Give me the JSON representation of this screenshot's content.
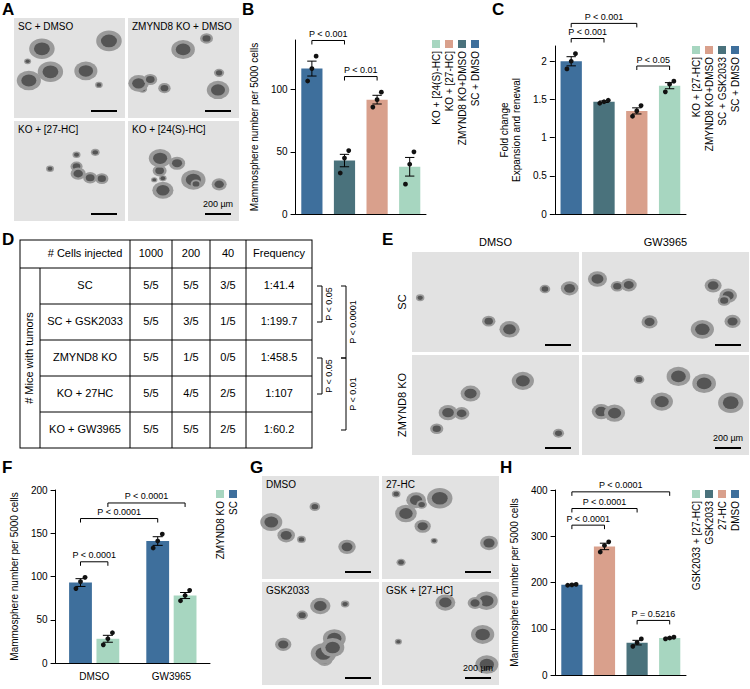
{
  "chart_data": [
    {
      "panel": "B",
      "type": "bar",
      "y_label": "Mammosphere number per 5000 cells",
      "categories": [
        "SC + DMSO",
        "ZMYND8 KO+DMSO",
        "KO + [27-HC]",
        "KO + [24(S)-HC]"
      ],
      "values": [
        117,
        43,
        92,
        38
      ],
      "colors": [
        "#3e6f9c",
        "#4a727c",
        "#d9a08c",
        "#a7d6c0"
      ],
      "errors": [
        6,
        5,
        3.5,
        7.5
      ],
      "points": [
        [
          107,
          117,
          127
        ],
        [
          33,
          45,
          51
        ],
        [
          86,
          92,
          98
        ],
        [
          24,
          40,
          50
        ]
      ],
      "ylim": [
        0,
        140
      ],
      "yticks": [
        0,
        50,
        100
      ],
      "grid": false,
      "tick_labels": "y",
      "legend": "right",
      "comparisons": [
        {
          "from": 0,
          "to": 1,
          "label": "P < 0.001"
        },
        {
          "from": 1,
          "to": 2,
          "label": "P < 0.01"
        }
      ]
    },
    {
      "panel": "C",
      "type": "bar",
      "y_label": "Fold change\nExpansion and renewal",
      "categories": [
        "SC + DMSO",
        "SC + GSK2033",
        "ZMYND8 KO+DMSO",
        "KO + [27-HC]"
      ],
      "values": [
        2.0,
        1.47,
        1.35,
        1.68
      ],
      "colors": [
        "#3e6f9c",
        "#4a727c",
        "#d9a08c",
        "#a7d6c0"
      ],
      "errors": [
        0.06,
        0.01,
        0.04,
        0.04
      ],
      "points": [
        [
          1.9,
          2.0,
          2.1
        ],
        [
          1.45,
          1.47,
          1.49
        ],
        [
          1.28,
          1.35,
          1.42
        ],
        [
          1.6,
          1.7,
          1.74
        ]
      ],
      "ylim": [
        0,
        2.2
      ],
      "yticks": [
        0,
        0.5,
        1,
        1.5,
        2
      ],
      "grid": false,
      "tick_labels": "y",
      "legend": "right",
      "comparisons": [
        {
          "from": 0,
          "to": 1,
          "label": "P < 0.001"
        },
        {
          "from": 2,
          "to": 3,
          "label": "P < 0.05"
        },
        {
          "from": 0,
          "to": 2,
          "label": "P < 0.001"
        }
      ]
    },
    {
      "panel": "F",
      "type": "bar",
      "y_label": "Mammosphere number per 5000 cells",
      "categories": [
        "DMSO",
        "GW3965"
      ],
      "series": [
        {
          "name": "SC",
          "color": "#3e6f9c",
          "values": [
            93,
            141
          ],
          "errors": [
            4.5,
            5
          ],
          "points": [
            [
              86,
              94,
              99
            ],
            [
              133,
              141,
              149
            ]
          ]
        },
        {
          "name": "ZMYND8 KO",
          "color": "#a7d6c0",
          "values": [
            28,
            78
          ],
          "errors": [
            4,
            3.5
          ],
          "points": [
            [
              21,
              28,
              35
            ],
            [
              72,
              78,
              84
            ]
          ]
        }
      ],
      "ylim": [
        0,
        200
      ],
      "yticks": [
        0,
        50,
        100,
        150,
        200
      ],
      "grid": false,
      "legend": "right",
      "comparisons": [
        {
          "from": {
            "category": 0,
            "series": 0
          },
          "to": {
            "category": 0,
            "series": 1
          },
          "label": "P < 0.0001"
        },
        {
          "from": {
            "category": 0,
            "series": 0
          },
          "to": {
            "category": 1,
            "series": 0
          },
          "label": "P < 0.0001"
        },
        {
          "from": {
            "category": 0,
            "series": 1
          },
          "to": {
            "category": 1,
            "series": 1
          },
          "label": "P < 0.0001"
        }
      ]
    },
    {
      "panel": "H",
      "type": "bar",
      "y_label": "Mammosphere number per 5000 cells",
      "categories": [
        "DMSO",
        "27-HC",
        "GSK2033",
        "GSK2033 + [27-HC]"
      ],
      "values": [
        195,
        278,
        70,
        80
      ],
      "colors": [
        "#3e6f9c",
        "#d9a08c",
        "#4a727c",
        "#a7d6c0"
      ],
      "errors": [
        1,
        7,
        5,
        1.5
      ],
      "points": [
        [
          194,
          195,
          196
        ],
        [
          266,
          280,
          288
        ],
        [
          62,
          70,
          78
        ],
        [
          78,
          80,
          82
        ]
      ],
      "ylim": [
        0,
        400
      ],
      "yticks": [
        0,
        100,
        200,
        300,
        400
      ],
      "grid": false,
      "tick_labels": "y",
      "legend": "right",
      "comparisons": [
        {
          "from": 0,
          "to": 1,
          "label": "P < 0.0001"
        },
        {
          "from": 2,
          "to": 3,
          "label": "P = 0.5216"
        },
        {
          "from": 0,
          "to": 2,
          "label": "P < 0.0001"
        },
        {
          "from": 0,
          "to": 3,
          "label": "P < 0.0001"
        }
      ]
    }
  ],
  "table": {
    "panel": "D",
    "header": [
      "# Cells injected",
      "1000",
      "200",
      "40",
      "Frequency"
    ],
    "row_header": "# Mice with tumors",
    "rows": [
      [
        "SC",
        "5/5",
        "5/5",
        "3/5",
        "1:41.4"
      ],
      [
        "SC + GSK2033",
        "5/5",
        "3/5",
        "1/5",
        "1:199.7"
      ],
      [
        "ZMYND8 KO",
        "5/5",
        "1/5",
        "0/5",
        "1:458.5"
      ],
      [
        "KO + 27HC",
        "5/5",
        "4/5",
        "2/5",
        "1:107"
      ],
      [
        "KO + GW3965",
        "5/5",
        "5/5",
        "2/5",
        "1:60.2"
      ]
    ],
    "comparisons": [
      {
        "rows": [
          0,
          1
        ],
        "label": "P < 0.05"
      },
      {
        "rows": [
          0,
          2
        ],
        "label": "P < 0.0001"
      },
      {
        "rows": [
          2,
          3
        ],
        "label": "P < 0.05"
      },
      {
        "rows": [
          2,
          4
        ],
        "label": "P < 0.01"
      }
    ]
  },
  "images": [
    {
      "panel": "A",
      "cells": [
        "SC + DMSO",
        "ZMYND8 KO + DMSO",
        "KO + [27-HC]",
        "KO + [24(S)-HC]"
      ],
      "scale_bar": "200 µm"
    },
    {
      "panel": "E",
      "columns": [
        "DMSO",
        "GW3965"
      ],
      "rows": [
        "SC",
        "ZMYND8 KO"
      ],
      "scale_bar": "200 µm"
    },
    {
      "panel": "G",
      "cells": [
        "DMSO",
        "27-HC",
        "GSK2033",
        "GSK + [27-HC]"
      ],
      "scale_bar": "200 µm"
    }
  ]
}
